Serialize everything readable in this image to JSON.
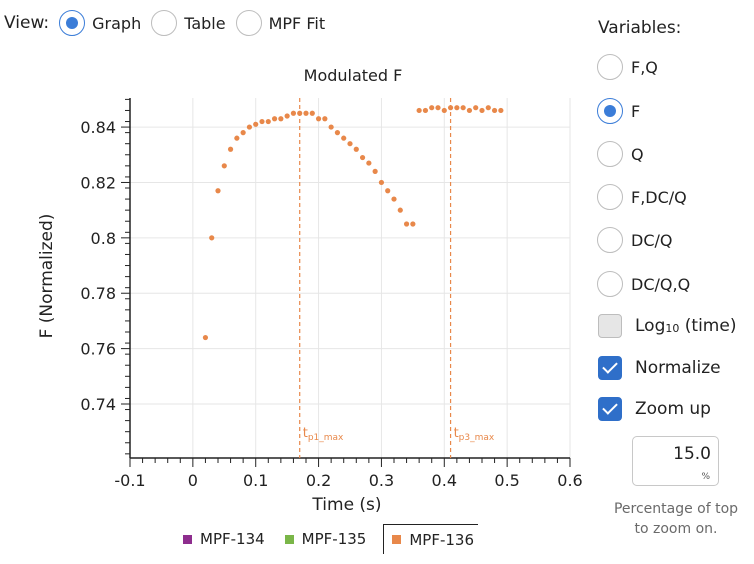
{
  "view": {
    "label": "View:",
    "options": [
      {
        "label": "Graph",
        "checked": true
      },
      {
        "label": "Table",
        "checked": false
      },
      {
        "label": "MPF Fit",
        "checked": false
      }
    ]
  },
  "variables": {
    "title": "Variables:",
    "options": [
      {
        "label": "F,Q",
        "checked": false
      },
      {
        "label": "F",
        "checked": true
      },
      {
        "label": "Q",
        "checked": false
      },
      {
        "label": "F,DC/Q",
        "checked": false
      },
      {
        "label": "DC/Q",
        "checked": false
      },
      {
        "label": "DC/Q,Q",
        "checked": false
      }
    ]
  },
  "checks": {
    "log_prefix": "Log",
    "log_sub": "10",
    "log_suffix": " (time)",
    "log_checked": false,
    "normalize": "Normalize",
    "normalize_checked": true,
    "zoom": "Zoom up",
    "zoom_checked": true
  },
  "zoom_pct": {
    "value": "15.0",
    "unit": "%",
    "caption_line1": "Percentage of top",
    "caption_line2": "to zoom on."
  },
  "legend": [
    {
      "label": "MPF-134",
      "color": "#8e2d8e",
      "selected": false
    },
    {
      "label": "MPF-135",
      "color": "#7ab648",
      "selected": false
    },
    {
      "label": "MPF-136",
      "color": "#e8884a",
      "selected": true
    }
  ],
  "chart_data": {
    "type": "scatter",
    "title": "Modulated F",
    "xlabel": "Time (s)",
    "ylabel": "F (Normalized)",
    "xlim": [
      -0.1,
      0.6
    ],
    "ylim": [
      0.7205,
      0.8505
    ],
    "x_ticks": [
      -0.1,
      0,
      0.1,
      0.2,
      0.3,
      0.4,
      0.5,
      0.6
    ],
    "x_tick_labels": [
      "-0.1",
      "0",
      "0.1",
      "0.2",
      "0.3",
      "0.4",
      "0.5",
      "0.6"
    ],
    "y_ticks": [
      0.74,
      0.76,
      0.78,
      0.8,
      0.82,
      0.84
    ],
    "y_tick_labels": [
      "0.74",
      "0.76",
      "0.78",
      "0.8",
      "0.82",
      "0.84"
    ],
    "grid": true,
    "series": [
      {
        "name": "MPF-136",
        "color": "#e8884a",
        "x": [
          0.02,
          0.03,
          0.04,
          0.05,
          0.06,
          0.07,
          0.08,
          0.09,
          0.1,
          0.11,
          0.12,
          0.13,
          0.14,
          0.15,
          0.16,
          0.17,
          0.18,
          0.19,
          0.2,
          0.21,
          0.22,
          0.23,
          0.24,
          0.25,
          0.26,
          0.27,
          0.28,
          0.29,
          0.3,
          0.31,
          0.32,
          0.33,
          0.34,
          0.35,
          0.36,
          0.37,
          0.38,
          0.39,
          0.4,
          0.41,
          0.42,
          0.43,
          0.44,
          0.45,
          0.46,
          0.47,
          0.48,
          0.49
        ],
        "y": [
          0.764,
          0.8,
          0.817,
          0.826,
          0.832,
          0.836,
          0.838,
          0.84,
          0.841,
          0.842,
          0.842,
          0.843,
          0.843,
          0.844,
          0.845,
          0.845,
          0.845,
          0.845,
          0.843,
          0.843,
          0.84,
          0.838,
          0.836,
          0.834,
          0.832,
          0.829,
          0.827,
          0.824,
          0.82,
          0.817,
          0.814,
          0.81,
          0.805,
          0.805,
          0.846,
          0.846,
          0.847,
          0.847,
          0.846,
          0.847,
          0.847,
          0.847,
          0.846,
          0.847,
          0.846,
          0.847,
          0.846,
          0.846
        ]
      }
    ],
    "markers": [
      {
        "x": 0.17,
        "label_main": "t",
        "label_sub": "p1_max"
      },
      {
        "x": 0.41,
        "label_main": "t",
        "label_sub": "p3_max"
      }
    ]
  }
}
